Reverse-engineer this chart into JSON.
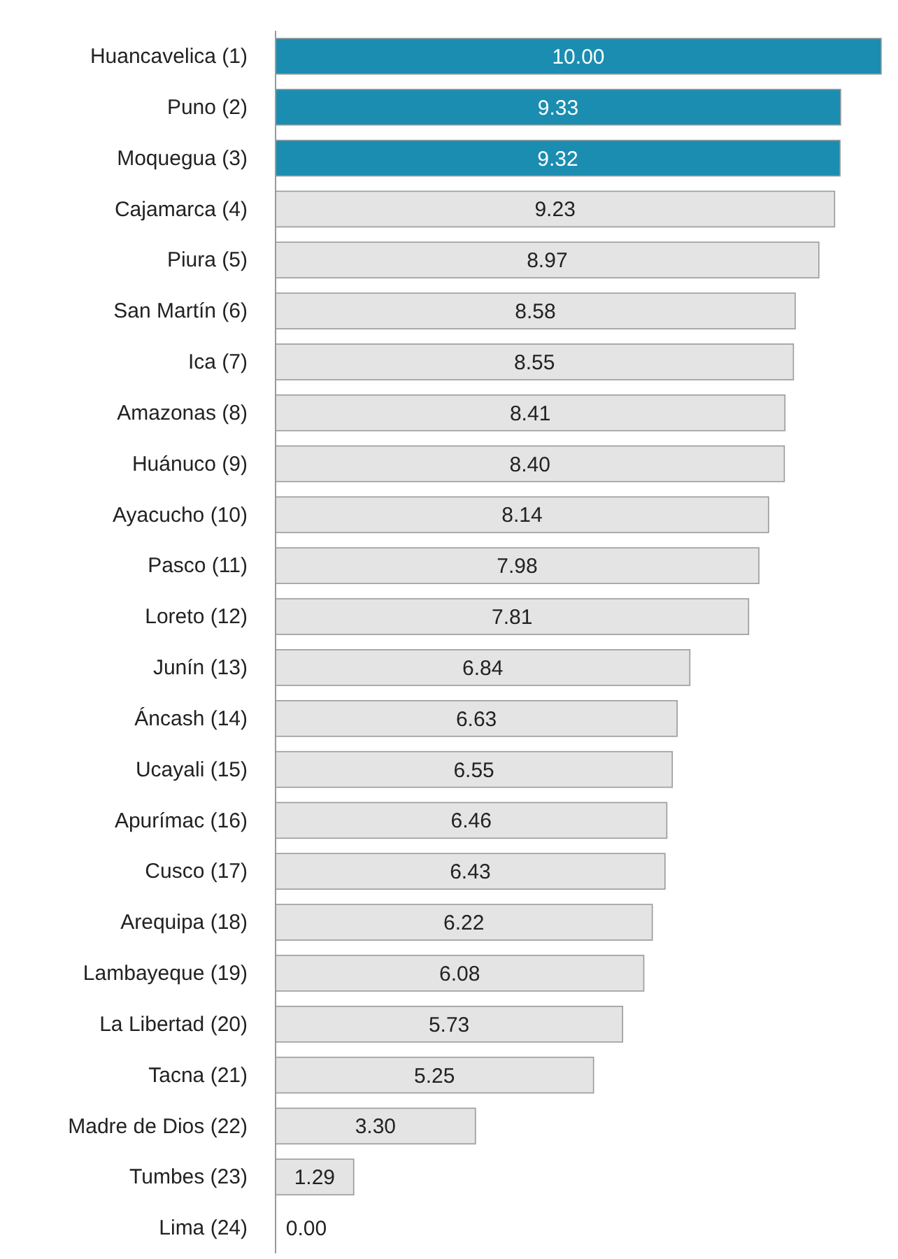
{
  "chart_data": {
    "type": "bar",
    "orientation": "horizontal",
    "value_labels": [
      "10.00",
      "9.33",
      "9.32",
      "9.23",
      "8.97",
      "8.58",
      "8.55",
      "8.41",
      "8.40",
      "8.14",
      "7.98",
      "7.81",
      "6.84",
      "6.63",
      "6.55",
      "6.46",
      "6.43",
      "6.22",
      "6.08",
      "5.73",
      "5.25",
      "3.30",
      "1.29",
      "0.00"
    ],
    "tick_labels": "y",
    "xlim": [
      0,
      10
    ],
    "categories": [
      "Huancavelica (1)",
      "Puno (2)",
      "Moquegua (3)",
      "Cajamarca (4)",
      "Piura (5)",
      "San Martín (6)",
      "Ica (7)",
      "Amazonas (8)",
      "Huánuco (9)",
      "Ayacucho (10)",
      "Pasco (11)",
      "Loreto (12)",
      "Junín (13)",
      "Áncash (14)",
      "Ucayali (15)",
      "Apurímac (16)",
      "Cusco (17)",
      "Arequipa (18)",
      "Lambayeque (19)",
      "La Libertad (20)",
      "Tacna (21)",
      "Madre de Dios (22)",
      "Tumbes (23)",
      "Lima (24)"
    ],
    "values": [
      10.0,
      9.33,
      9.32,
      9.23,
      8.97,
      8.58,
      8.55,
      8.41,
      8.4,
      8.14,
      7.98,
      7.81,
      6.84,
      6.63,
      6.55,
      6.46,
      6.43,
      6.22,
      6.08,
      5.73,
      5.25,
      3.3,
      1.29,
      0.0
    ],
    "colors": [
      "#1b8db0",
      "#1b8db0",
      "#1b8db0",
      "#e4e4e4",
      "#e4e4e4",
      "#e4e4e4",
      "#e4e4e4",
      "#e4e4e4",
      "#e4e4e4",
      "#e4e4e4",
      "#e4e4e4",
      "#e4e4e4",
      "#e4e4e4",
      "#e4e4e4",
      "#e4e4e4",
      "#e4e4e4",
      "#e4e4e4",
      "#e4e4e4",
      "#e4e4e4",
      "#e4e4e4",
      "#e4e4e4",
      "#e4e4e4",
      "#e4e4e4",
      "#e4e4e4"
    ]
  }
}
